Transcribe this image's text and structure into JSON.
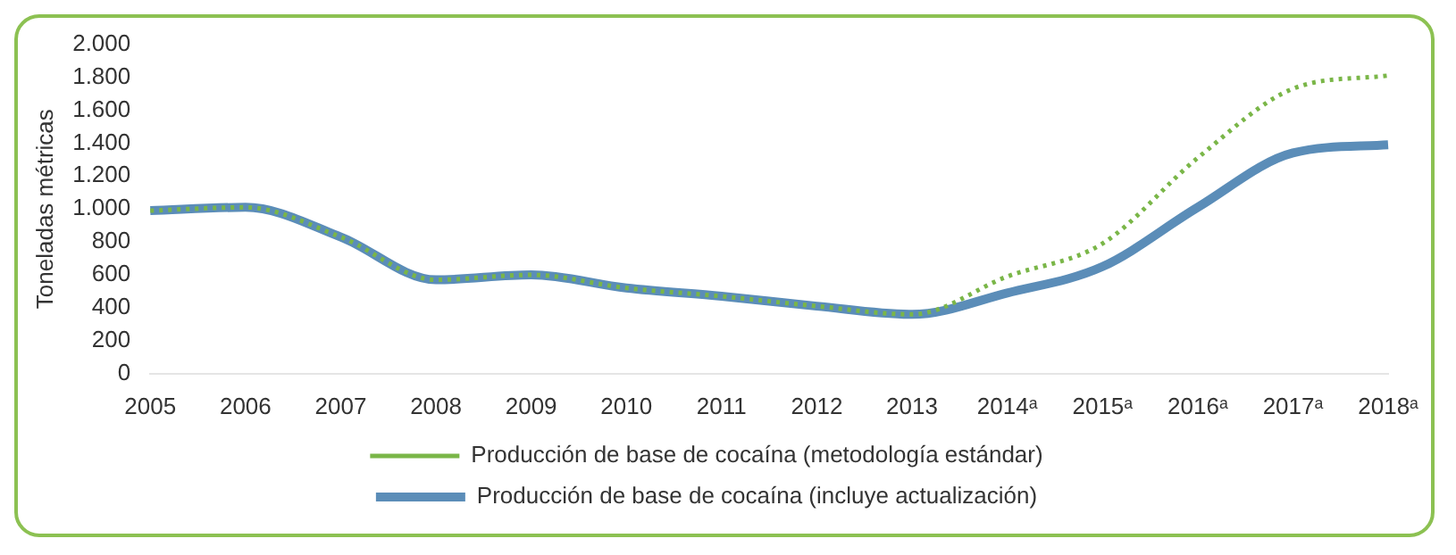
{
  "chart_data": {
    "type": "line",
    "ylabel": "Toneladas métricas",
    "categories": [
      "2005",
      "2006",
      "2007",
      "2008",
      "2009",
      "2010",
      "2011",
      "2012",
      "2013",
      "2014ᵃ",
      "2015ᵃ",
      "2016ᵃ",
      "2017ᵃ",
      "2018ᵃ"
    ],
    "series": [
      {
        "name": "Producción de base de cocaína (incluye actualización)",
        "color": "#5b8db8",
        "line_style": "solid",
        "values": [
          990,
          1010,
          830,
          570,
          600,
          520,
          470,
          410,
          360,
          490,
          650,
          1010,
          1340,
          1390
        ]
      },
      {
        "name": "Producción de base de cocaína (metodología estándar)",
        "color": "#7ab648",
        "line_style": "dotted",
        "values": [
          990,
          1010,
          830,
          570,
          600,
          520,
          470,
          410,
          360,
          590,
          790,
          1310,
          1730,
          1810
        ]
      }
    ],
    "ylim": [
      0,
      2000
    ],
    "yticks": [
      {
        "value": 0,
        "label": "0"
      },
      {
        "value": 200,
        "label": "200"
      },
      {
        "value": 400,
        "label": "400"
      },
      {
        "value": 600,
        "label": "600"
      },
      {
        "value": 800,
        "label": "800"
      },
      {
        "value": 1000,
        "label": "1.000"
      },
      {
        "value": 1200,
        "label": "1.200"
      },
      {
        "value": 1400,
        "label": "1.400"
      },
      {
        "value": 1600,
        "label": "1.600"
      },
      {
        "value": 1800,
        "label": "1.800"
      },
      {
        "value": 2000,
        "label": "2.000"
      }
    ],
    "grid": false,
    "legend": "bottom",
    "marker": "none"
  }
}
